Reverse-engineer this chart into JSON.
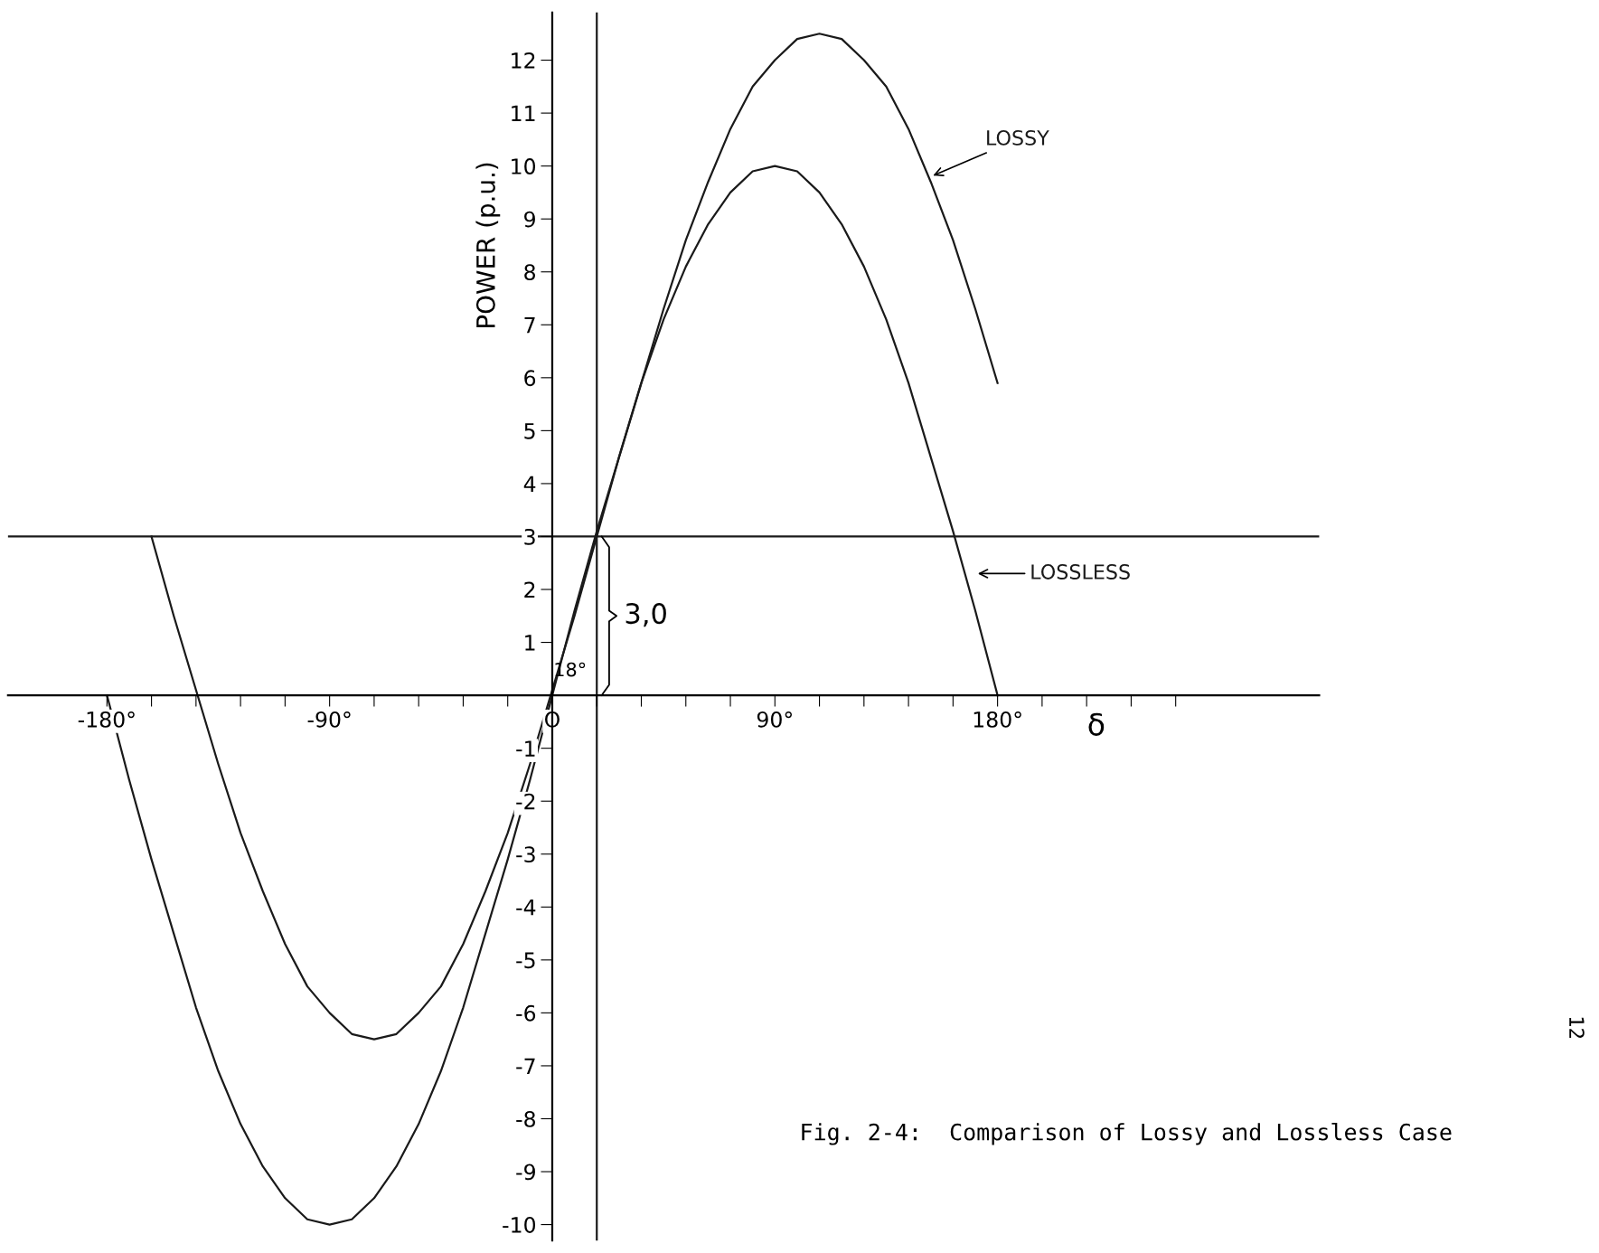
{
  "chart_data": {
    "type": "line",
    "xlabel": "δ",
    "ylabel": "POWER (p.u.)",
    "series": [
      {
        "name": "LOSSY",
        "color": "#1a1a1a",
        "x": [
          -162,
          -153,
          -144,
          -135,
          -126,
          -117,
          -108,
          -99,
          -90,
          -81,
          -72,
          -63,
          -54,
          -45,
          -36,
          -27,
          -18,
          -9,
          0,
          9,
          18,
          27,
          36,
          45,
          54,
          63,
          72,
          81,
          90,
          99,
          108,
          117,
          126,
          135,
          144,
          153,
          162,
          171,
          180
        ],
        "values": [
          3.0,
          1.5,
          0.1,
          -1.3,
          -2.6,
          -3.7,
          -4.7,
          -5.5,
          -6.0,
          -6.4,
          -6.5,
          -6.4,
          -6.0,
          -5.5,
          -4.7,
          -3.7,
          -2.6,
          -1.3,
          0.1,
          1.5,
          3.0,
          4.5,
          5.9,
          7.3,
          8.6,
          9.7,
          10.7,
          11.5,
          12.0,
          12.4,
          12.5,
          12.4,
          12.0,
          11.5,
          10.7,
          9.7,
          8.6,
          7.3,
          5.9
        ]
      },
      {
        "name": "LOSSLESS",
        "color": "#1a1a1a",
        "x": [
          -180,
          -171,
          -162,
          -153,
          -144,
          -135,
          -126,
          -117,
          -108,
          -99,
          -90,
          -81,
          -72,
          -63,
          -54,
          -45,
          -36,
          -27,
          -18,
          -9,
          0,
          9,
          18,
          27,
          36,
          45,
          54,
          63,
          72,
          81,
          90,
          99,
          108,
          117,
          126,
          135,
          144,
          153,
          162,
          171,
          180
        ],
        "values": [
          0,
          -1.6,
          -3.1,
          -4.5,
          -5.9,
          -7.1,
          -8.1,
          -8.9,
          -9.5,
          -9.9,
          -10,
          -9.9,
          -9.5,
          -8.9,
          -8.1,
          -7.1,
          -5.9,
          -4.5,
          -3.1,
          -1.6,
          0,
          1.6,
          3.1,
          4.5,
          5.9,
          7.1,
          8.1,
          8.9,
          9.5,
          9.9,
          10,
          9.9,
          9.5,
          8.9,
          8.1,
          7.1,
          5.9,
          4.5,
          3.1,
          1.6,
          0
        ]
      }
    ],
    "xlim": [
      -220,
      310
    ],
    "ylim": [
      -10.3,
      12.9
    ],
    "xticks": [
      {
        "value": -180,
        "label": "-180°"
      },
      {
        "value": -162,
        "label": null
      },
      {
        "value": -144,
        "label": null
      },
      {
        "value": -126,
        "label": null
      },
      {
        "value": -108,
        "label": null
      },
      {
        "value": -90,
        "label": "-90°"
      },
      {
        "value": -72,
        "label": null
      },
      {
        "value": -54,
        "label": null
      },
      {
        "value": -36,
        "label": null
      },
      {
        "value": -18,
        "label": null
      },
      {
        "value": 0,
        "label": "O"
      },
      {
        "value": 18,
        "label": null
      },
      {
        "value": 36,
        "label": null
      },
      {
        "value": 54,
        "label": null
      },
      {
        "value": 72,
        "label": null
      },
      {
        "value": 90,
        "label": "90°"
      },
      {
        "value": 108,
        "label": null
      },
      {
        "value": 126,
        "label": null
      },
      {
        "value": 144,
        "label": null
      },
      {
        "value": 162,
        "label": null
      },
      {
        "value": 180,
        "label": "180°"
      },
      {
        "value": 198,
        "label": null
      },
      {
        "value": 216,
        "label": null
      },
      {
        "value": 234,
        "label": null
      },
      {
        "value": 252,
        "label": null
      }
    ],
    "yticks": [
      -10,
      -9,
      -8,
      -7,
      -6,
      -5,
      -4,
      -3,
      -2,
      -1,
      {
        "value": 0,
        "label": null
      },
      1,
      2,
      3,
      4,
      5,
      6,
      7,
      8,
      9,
      10,
      11,
      12
    ],
    "ref_lines": [
      {
        "axis": "y",
        "value": 3,
        "color": "#1a1a1a"
      },
      {
        "axis": "x",
        "value": 18,
        "color": "#1a1a1a"
      }
    ],
    "annotations": [
      {
        "text": "18°",
        "x": 18,
        "y": 0
      },
      {
        "text": "3,0",
        "x": 18,
        "y": 1.5
      },
      "Fig. 2-4:  Comparison of Lossy and Lossless Case",
      "12"
    ],
    "grid": false,
    "legend": false,
    "marker": "none",
    "line_style": "solid"
  }
}
